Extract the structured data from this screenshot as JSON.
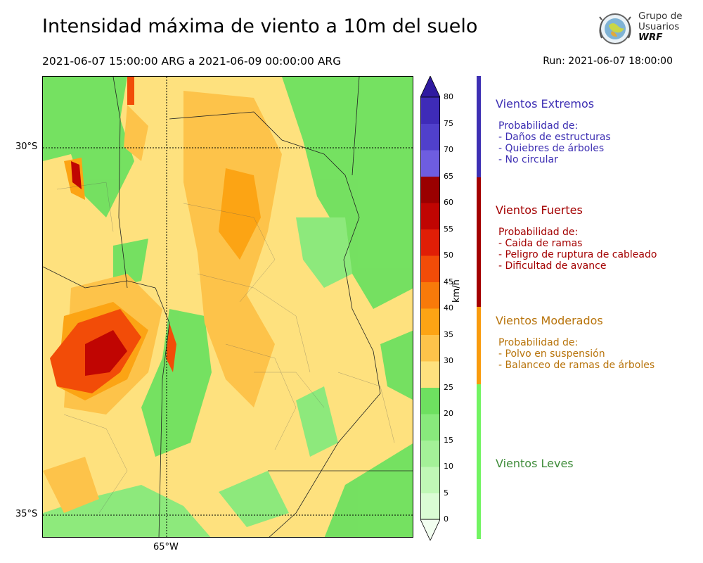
{
  "title": "Intensidad máxima de viento a 10m del suelo",
  "period": "2021-06-07 15:00:00 ARG  a  2021-06-09 00:00:00 ARG",
  "run": "Run: 2021-06-07 18:00:00",
  "logo": {
    "line1": "Grupo de",
    "line2": "Usuarios",
    "line3": "WRF"
  },
  "map": {
    "lat_labels": [
      "30°S",
      "35°S"
    ],
    "lon_labels": [
      "65°W"
    ]
  },
  "colorbar": {
    "unit": "km/h",
    "ticks": [
      "0",
      "5",
      "10",
      "15",
      "20",
      "25",
      "30",
      "35",
      "40",
      "45",
      "50",
      "55",
      "60",
      "65",
      "70",
      "75",
      "80"
    ],
    "colors": [
      "#f2fef0",
      "#dafcd4",
      "#c0f8b6",
      "#a4f198",
      "#88ea7c",
      "#6ee060",
      "#fee17e",
      "#fdc34a",
      "#fca414",
      "#f87a0a",
      "#f24c08",
      "#e01e06",
      "#c00502",
      "#9a0000",
      "#6e5de0",
      "#5040cc",
      "#3e2bb8",
      "#2f1aa0"
    ]
  },
  "categories": [
    {
      "title": "Vientos Extremos",
      "color": "#3d2fb3",
      "desc_header": "Probabilidad de:",
      "items": [
        "- Daños de estructuras",
        "- Quiebres de árboles",
        "- No circular"
      ]
    },
    {
      "title": "Vientos Fuertes",
      "color": "#a30000",
      "desc_header": "Probabilidad de:",
      "items": [
        "- Caida de ramas",
        "- Peligro de ruptura de cableado",
        "- Dificultad de avance"
      ]
    },
    {
      "title": "Vientos Moderados",
      "color": "#b8740c",
      "desc_header": "Probabilidad de:",
      "items": [
        "- Polvo en suspensión",
        "- Balanceo de ramas de árboles"
      ]
    },
    {
      "title": "Vientos Leves",
      "color": "#3f8c3a",
      "desc_header": "",
      "items": []
    }
  ]
}
